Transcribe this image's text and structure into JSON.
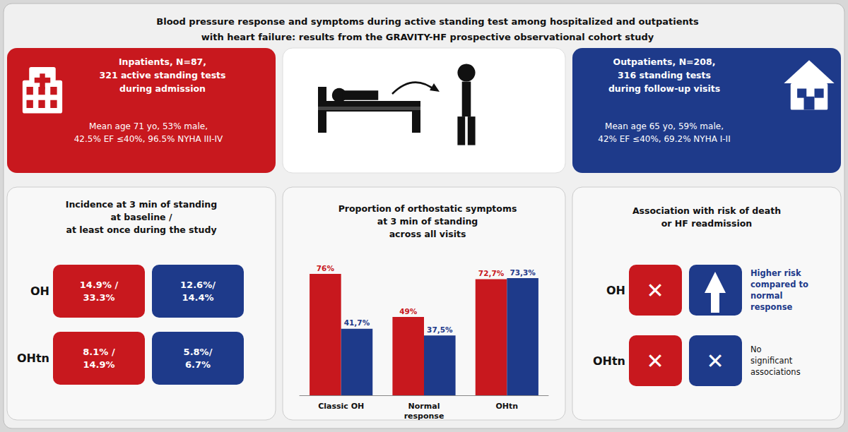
{
  "chart_data": {
    "type": "bar",
    "title": "Blood pressure response and symptoms during active standing test among hospitalized and outpatients\nwith heart failure: results from the GRAVITY-HF prospective observational cohort study",
    "subtitle": "Proportion of orthostatic symptoms\nat 3 min of standing\nacross all visits",
    "categories": [
      "Classic OH",
      "Normal\nresponse",
      "OHtn"
    ],
    "series": [
      {
        "color": "#c8181e",
        "values": [
          76,
          49,
          72.7
        ],
        "value_labels": [
          "76%",
          "49%",
          "72,7%"
        ]
      },
      {
        "color": "#1e3a8a",
        "values": [
          41.7,
          37.5,
          73.3
        ],
        "value_labels": [
          "41,7%",
          "37,5%",
          "73,3%"
        ]
      }
    ],
    "ylim": [
      0,
      95
    ],
    "tick_labels": "x",
    "grid": false,
    "data_labels": true,
    "annotations": [
      "Inpatients, N=87,\n321 active standing tests\nduring admission",
      "Mean age 71 yo, 53% male,\n42.5% EF ≤40%, 96.5% NYHA III-IV",
      "Outpatients, N=208,\n316 standing tests\nduring follow-up visits",
      "Mean age 65 yo, 59% male,\n42% EF ≤40%, 69.2% NYHA I-II",
      "Incidence at 3 min of standing\nat baseline /\nat least once during the study",
      "OH",
      "14.9% /\n33.3%",
      "12.6%/\n14.4%",
      "OHtn",
      "8.1% /\n14.9%",
      "5.8%/\n6.7%",
      "Association with risk of death\nor HF readmission",
      "OH",
      "✕",
      "Higher risk\ncompared to\nnormal\nresponse",
      "OHtn",
      "✕",
      "✕",
      "No\nsignificant\nassociations"
    ]
  }
}
